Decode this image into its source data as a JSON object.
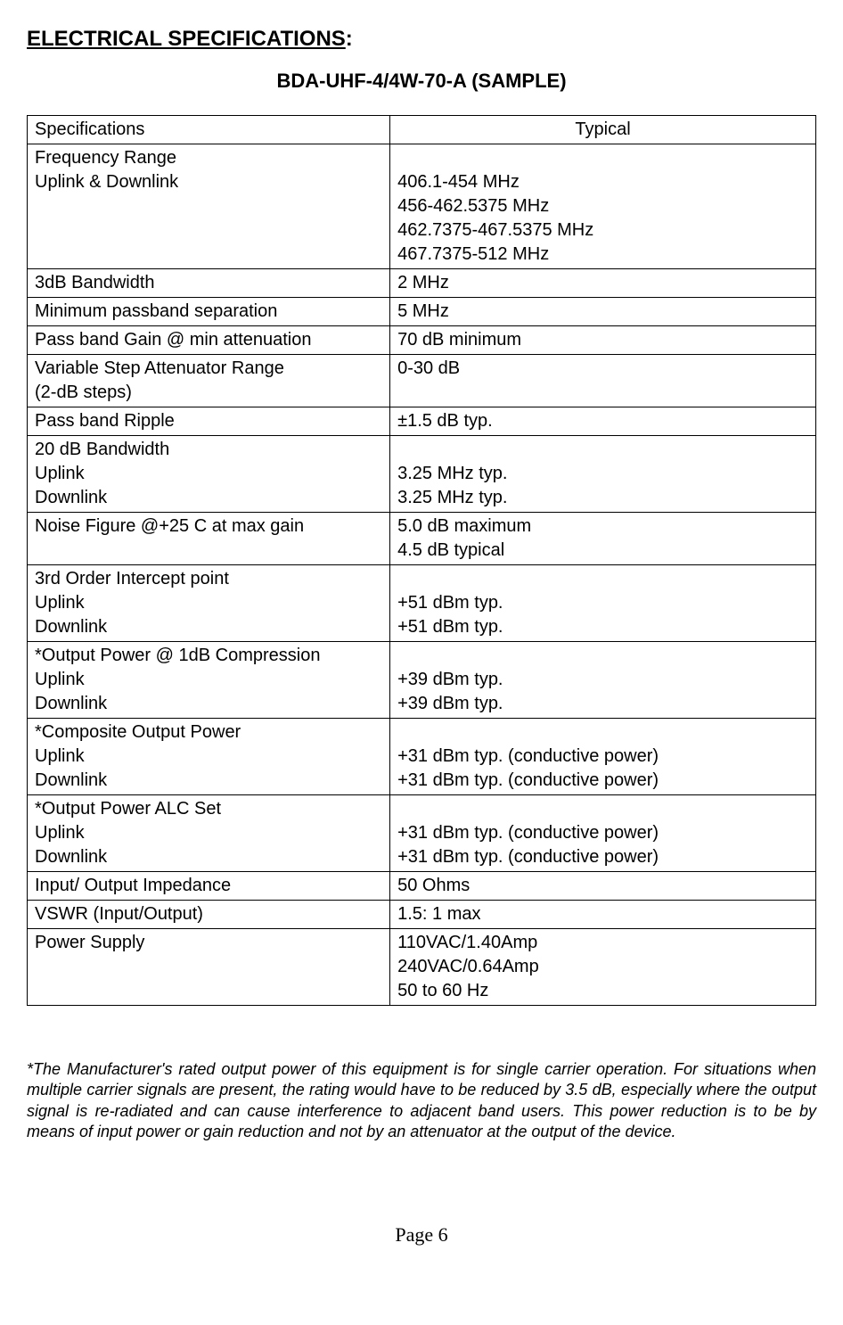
{
  "heading": "ELECTRICAL SPECIFICATIONS",
  "heading_colon": ":",
  "model": "BDA-UHF-4/4W-70-A (SAMPLE)",
  "table": {
    "headers": [
      "Specifications",
      "Typical"
    ],
    "rows": [
      [
        "Frequency Range\nUplink & Downlink",
        "\n406.1-454 MHz\n456-462.5375 MHz\n462.7375-467.5375 MHz\n467.7375-512 MHz"
      ],
      [
        "3dB Bandwidth",
        "2 MHz"
      ],
      [
        "Minimum passband separation",
        "5 MHz"
      ],
      [
        "Pass band Gain @ min attenuation",
        "70 dB minimum"
      ],
      [
        "Variable Step Attenuator Range\n(2-dB steps)",
        "0-30 dB"
      ],
      [
        "Pass band Ripple",
        "±1.5 dB typ."
      ],
      [
        "20 dB Bandwidth\nUplink\nDownlink",
        "\n3.25 MHz typ.\n3.25 MHz typ."
      ],
      [
        "Noise Figure @+25  C at max gain",
        "5.0 dB maximum\n4.5 dB typical"
      ],
      [
        "3rd Order Intercept point\nUplink\nDownlink",
        "\n+51 dBm typ.\n+51 dBm typ."
      ],
      [
        "*Output Power @ 1dB Compression\nUplink\nDownlink",
        "\n+39 dBm typ.\n+39 dBm typ."
      ],
      [
        "*Composite Output Power\nUplink\nDownlink",
        "\n+31 dBm typ. (conductive power)\n+31 dBm typ. (conductive power)"
      ],
      [
        "*Output Power ALC Set\nUplink\nDownlink",
        "\n+31 dBm typ. (conductive power)\n+31 dBm typ. (conductive power)"
      ],
      [
        "Input/ Output Impedance",
        "50 Ohms"
      ],
      [
        "VSWR (Input/Output)",
        "1.5: 1 max"
      ],
      [
        "Power Supply",
        "110VAC/1.40Amp\n240VAC/0.64Amp\n50 to 60 Hz"
      ]
    ]
  },
  "footnote": "*The Manufacturer's rated output power of this equipment is for single carrier operation. For situations when multiple carrier signals are present, the rating would have to be reduced by 3.5 dB, especially where the output signal is re-radiated and can cause interference to adjacent band users. This power reduction is to be by means of input power or gain reduction and not by an attenuator at the output of the device.",
  "page_number": "Page 6"
}
